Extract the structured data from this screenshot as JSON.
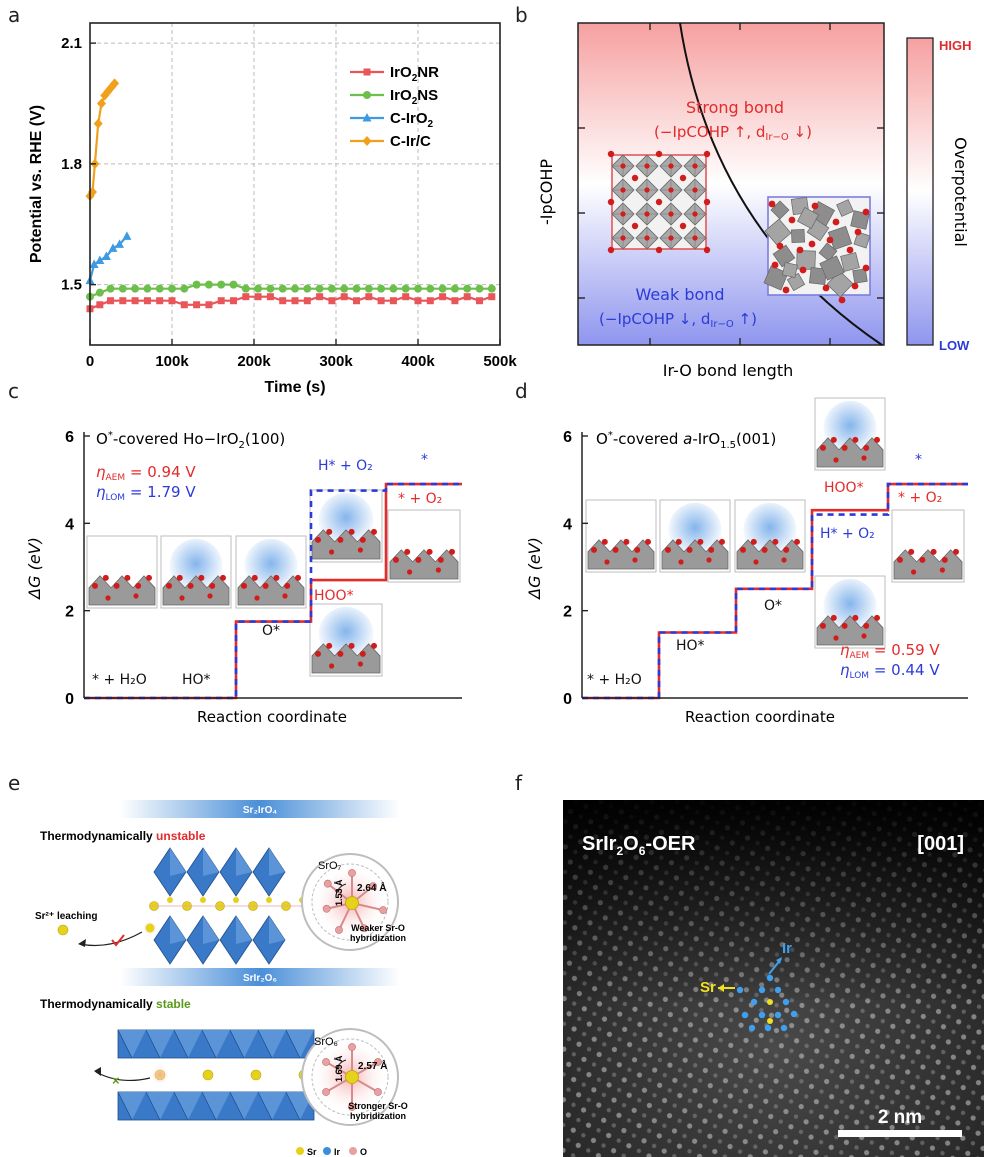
{
  "panels": {
    "a": "a",
    "b": "b",
    "c": "c",
    "d": "d",
    "e": "e",
    "f": "f"
  },
  "colors": {
    "ir02nr": "#e8565a",
    "ir02ns": "#6cbf4a",
    "cirO2": "#3e9be2",
    "circ": "#f0a01a",
    "red": "#e32b2b",
    "blue": "#2b3bd8",
    "octa": "#3a78c8"
  },
  "chart_data": [
    {
      "type": "line",
      "panel": "a",
      "xlabel": "Time (s)",
      "ylabel": "Potential vs. RHE (V)",
      "xlim": [
        0,
        500000
      ],
      "ylim": [
        1.35,
        2.15
      ],
      "xticks": [
        "0",
        "100k",
        "200k",
        "300k",
        "400k",
        "500k"
      ],
      "yticks": [
        "1.5",
        "1.8",
        "2.1"
      ],
      "grid": true,
      "legend": "top-right",
      "series": [
        {
          "name": "IrO2NR",
          "x": [
            0,
            12000,
            25000,
            40000,
            55000,
            70000,
            85000,
            100000,
            115000,
            130000,
            145000,
            160000,
            175000,
            190000,
            205000,
            220000,
            235000,
            250000,
            265000,
            280000,
            295000,
            310000,
            325000,
            340000,
            355000,
            370000,
            385000,
            400000,
            415000,
            430000,
            445000,
            460000,
            475000,
            490000
          ],
          "y": [
            1.44,
            1.45,
            1.46,
            1.46,
            1.46,
            1.46,
            1.46,
            1.46,
            1.45,
            1.45,
            1.45,
            1.46,
            1.46,
            1.47,
            1.47,
            1.47,
            1.46,
            1.46,
            1.46,
            1.47,
            1.46,
            1.47,
            1.46,
            1.47,
            1.46,
            1.46,
            1.47,
            1.46,
            1.46,
            1.47,
            1.46,
            1.47,
            1.46,
            1.47
          ]
        },
        {
          "name": "IrO2NS",
          "x": [
            0,
            12000,
            25000,
            40000,
            55000,
            70000,
            85000,
            100000,
            115000,
            130000,
            145000,
            160000,
            175000,
            190000,
            205000,
            220000,
            235000,
            250000,
            265000,
            280000,
            295000,
            310000,
            325000,
            340000,
            355000,
            370000,
            385000,
            400000,
            415000,
            430000,
            445000,
            460000,
            475000,
            490000
          ],
          "y": [
            1.47,
            1.48,
            1.49,
            1.49,
            1.49,
            1.49,
            1.49,
            1.49,
            1.49,
            1.5,
            1.5,
            1.5,
            1.5,
            1.49,
            1.49,
            1.49,
            1.49,
            1.49,
            1.49,
            1.49,
            1.49,
            1.49,
            1.49,
            1.49,
            1.49,
            1.49,
            1.49,
            1.49,
            1.49,
            1.49,
            1.49,
            1.49,
            1.49,
            1.49
          ]
        },
        {
          "name": "C-IrO2",
          "x": [
            0,
            5000,
            12000,
            20000,
            28000,
            36000,
            45000
          ],
          "y": [
            1.51,
            1.55,
            1.56,
            1.57,
            1.59,
            1.6,
            1.62
          ]
        },
        {
          "name": "C-Ir/C",
          "x": [
            0,
            3000,
            6000,
            10000,
            14000,
            18000,
            22000,
            26000,
            30000
          ],
          "y": [
            1.72,
            1.73,
            1.8,
            1.9,
            1.95,
            1.97,
            1.98,
            1.99,
            2.0
          ]
        }
      ]
    },
    {
      "type": "diagram",
      "panel": "b",
      "xlabel": "Ir-O bond length",
      "ylabel": "-IpCOHP",
      "colorbar_high": "HIGH",
      "colorbar_low": "LOW",
      "colorbar_label": "Overpotential",
      "strong_title": "Strong bond",
      "strong_detail": "(−IpCOHP ↑, d",
      "strong_sub": "Ir−O",
      "strong_tail": " ↓)",
      "weak_title": "Weak bond",
      "weak_detail": "(−IpCOHP ↓, d",
      "weak_sub": "Ir−O",
      "weak_tail": " ↑)"
    },
    {
      "type": "step",
      "panel": "c",
      "xlabel": "Reaction coordinate",
      "ylabel": "ΔG (eV)",
      "ylim": [
        0,
        6
      ],
      "yticks": [
        "0",
        "2",
        "4",
        "6"
      ],
      "title_pre": "O",
      "title_sup": "*",
      "title_mid": "-covered Ho−IrO",
      "title_sub": "2",
      "title_post": "(100)",
      "eta_aem": "0.94 V",
      "eta_lom": "1.79 V",
      "aem_levels": [
        0,
        1.75,
        2.7,
        4.9
      ],
      "lom_levels": [
        0,
        1.75,
        4.75,
        4.9
      ],
      "labels": [
        "* + H₂O",
        "HO*",
        "O*",
        "HOO*",
        "H* + O₂",
        "* + O₂",
        "*"
      ]
    },
    {
      "type": "step",
      "panel": "d",
      "xlabel": "Reaction coordinate",
      "ylabel": "ΔG (eV)",
      "ylim": [
        0,
        6
      ],
      "yticks": [
        "0",
        "2",
        "4",
        "6"
      ],
      "title_pre": "O",
      "title_sup": "*",
      "title_mid": "-covered ",
      "title_it": "a",
      "title_rest": "-IrO",
      "title_sub": "1.5",
      "title_post": "(001)",
      "eta_aem": "0.59 V",
      "eta_lom": "0.44 V",
      "aem_levels": [
        0,
        1.5,
        2.5,
        4.3,
        4.9
      ],
      "lom_levels": [
        0,
        1.5,
        2.5,
        4.2,
        4.9
      ],
      "labels": [
        "* + H₂O",
        "HO*",
        "O*",
        "HOO*",
        "H* + O₂",
        "* + O₂",
        "*"
      ]
    }
  ],
  "panel_e": {
    "band1": "Sr₂IrO₄",
    "title1_pre": "Thermodynamically ",
    "title1_word": "unstable",
    "leaching": "Sr²⁺ leaching",
    "sro7": "SrO₇",
    "d1a": "1.53 Å",
    "d1b": "2.64 Å",
    "weak_hyb_1": "Weaker Sr-O",
    "weak_hyb_2": "hybridization",
    "band2": "SrIr₂O₆",
    "title2_pre": "Thermodynamically ",
    "title2_word": "stable",
    "sro6": "SrO₆",
    "d2a": "1.69 Å",
    "d2b": "2.57 Å",
    "strong_hyb_1": "Stronger Sr-O",
    "strong_hyb_2": "hybridization",
    "legend": [
      "Sr",
      "Ir",
      "O"
    ]
  },
  "panel_f": {
    "title_main": "SrIr",
    "title_sub1": "2",
    "title_o": "O",
    "title_sub2": "6",
    "title_tail": "-OER",
    "zone": "[001]",
    "sr": "Sr",
    "ir": "Ir",
    "scale": "2 nm"
  }
}
